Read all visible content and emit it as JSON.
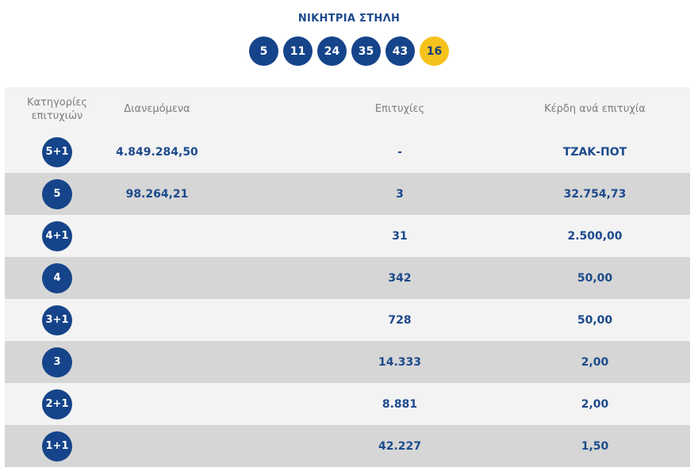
{
  "title": "ΝΙΚΗΤΡΙΑ ΣΤΗΛΗ",
  "numbers": [
    "5",
    "11",
    "24",
    "35",
    "43"
  ],
  "bonus": "16",
  "colors": {
    "ball": "#15448a",
    "bonus": "#f6c21c",
    "text": "#1c4a8c"
  },
  "headers": {
    "category_line1": "Κατηγορίες",
    "category_line2": "επιτυχιών",
    "distributed": "Διανεμόμενα",
    "winners": "Επιτυχίες",
    "prize": "Κέρδη ανά επιτυχία"
  },
  "rows": [
    {
      "category": "5+1",
      "distributed": "4.849.284,50",
      "winners": "-",
      "prize": "ΤΖΑΚ-ΠΟΤ"
    },
    {
      "category": "5",
      "distributed": "98.264,21",
      "winners": "3",
      "prize": "32.754,73"
    },
    {
      "category": "4+1",
      "distributed": "",
      "winners": "31",
      "prize": "2.500,00"
    },
    {
      "category": "4",
      "distributed": "",
      "winners": "342",
      "prize": "50,00"
    },
    {
      "category": "3+1",
      "distributed": "",
      "winners": "728",
      "prize": "50,00"
    },
    {
      "category": "3",
      "distributed": "",
      "winners": "14.333",
      "prize": "2,00"
    },
    {
      "category": "2+1",
      "distributed": "",
      "winners": "8.881",
      "prize": "2,00"
    },
    {
      "category": "1+1",
      "distributed": "",
      "winners": "42.227",
      "prize": "1,50"
    }
  ]
}
